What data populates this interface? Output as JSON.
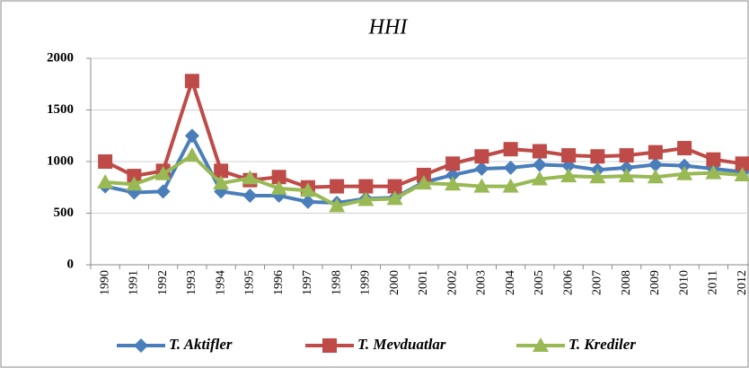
{
  "chart_data": {
    "type": "line",
    "title": "HHI",
    "categories": [
      "1990",
      "1991",
      "1992",
      "1993",
      "1994",
      "1995",
      "1996",
      "1997",
      "1998",
      "1999",
      "2000",
      "2001",
      "2002",
      "2003",
      "2004",
      "2005",
      "2006",
      "2007",
      "2008",
      "2009",
      "2010",
      "2011",
      "2012"
    ],
    "series": [
      {
        "name": "T. Aktifler",
        "color": "#4a7ebb",
        "marker": "diamond",
        "values": [
          760,
          700,
          710,
          1250,
          710,
          670,
          670,
          610,
          600,
          640,
          650,
          800,
          870,
          930,
          940,
          970,
          960,
          920,
          940,
          970,
          960,
          930,
          900
        ]
      },
      {
        "name": "T. Mevduatlar",
        "color": "#be4b48",
        "marker": "square",
        "values": [
          1000,
          860,
          910,
          1780,
          910,
          820,
          850,
          750,
          760,
          760,
          760,
          870,
          980,
          1050,
          1120,
          1100,
          1060,
          1050,
          1060,
          1090,
          1130,
          1020,
          980
        ]
      },
      {
        "name": "T. Krediler",
        "color": "#98b954",
        "marker": "triangle",
        "values": [
          800,
          780,
          880,
          1060,
          790,
          840,
          740,
          720,
          570,
          630,
          640,
          790,
          780,
          760,
          760,
          830,
          860,
          850,
          860,
          850,
          880,
          890,
          870
        ]
      }
    ],
    "ylim": [
      0,
      2000
    ],
    "yticks": [
      0,
      500,
      1000,
      1500,
      2000
    ],
    "grid": true,
    "legend": "bottom"
  }
}
